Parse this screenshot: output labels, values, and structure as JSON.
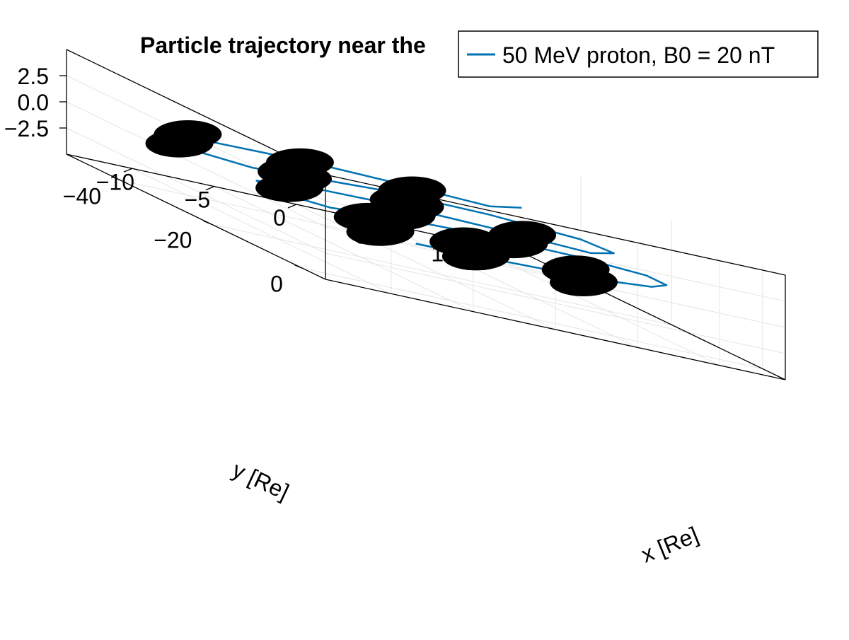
{
  "chart_data": {
    "type": "line",
    "title": "Particle trajectory near the",
    "xlabel": "x [Re]",
    "ylabel": "y [Re]",
    "zlabel": "",
    "legend": {
      "placement": "top-right",
      "entries": [
        "50 MeV proton, B0 = 20 nT"
      ]
    },
    "axes": {
      "x_ticks": [
        -10,
        -5,
        0,
        5,
        10
      ],
      "x_tick_labels": [
        "−10",
        "−5",
        "0",
        "5",
        "10"
      ],
      "y_ticks": [
        0,
        -20,
        -40
      ],
      "y_tick_labels": [
        "0",
        "−20",
        "−40"
      ],
      "z_ticks": [
        2.5,
        0.0,
        -2.5
      ],
      "z_tick_labels": [
        "2.5",
        "0.0",
        "−2.5"
      ],
      "xlim": [
        -14,
        14
      ],
      "ylim": [
        -52,
        5
      ],
      "zlim": [
        -5,
        5
      ],
      "grid": true
    },
    "series": [
      {
        "name": "50 MeV proton, B0 = 20 nT",
        "color": "#0072b2",
        "points": [
          [
            -8.5,
            5.0,
            0.3
          ],
          [
            -5.0,
            2.0,
            0.0
          ],
          [
            0.0,
            0.5,
            0.0
          ],
          [
            5.0,
            -1.5,
            0.0
          ],
          [
            8.5,
            -4.5,
            0.0
          ],
          [
            10.5,
            -8.5,
            0.0
          ],
          [
            10.5,
            -13.0,
            0.0
          ],
          [
            7.0,
            -16.0,
            0.0
          ],
          [
            1.0,
            -17.0,
            0.0
          ],
          [
            -5.0,
            -15.0,
            0.0
          ],
          [
            -9.0,
            -12.0,
            0.0
          ],
          [
            -11.5,
            -15.5,
            0.0
          ],
          [
            -11.0,
            -21.0,
            0.0
          ],
          [
            -7.0,
            -25.0,
            0.0
          ],
          [
            -1.0,
            -26.0,
            0.0
          ],
          [
            5.0,
            -24.0,
            0.0
          ],
          [
            9.5,
            -21.5,
            0.0
          ],
          [
            12.0,
            -25.5,
            0.0
          ],
          [
            11.5,
            -31.0,
            0.0
          ],
          [
            7.0,
            -35.0,
            0.0
          ],
          [
            1.0,
            -36.0,
            0.0
          ],
          [
            -5.0,
            -33.0,
            0.0
          ],
          [
            -8.5,
            -31.0,
            0.0
          ],
          [
            -11.5,
            -35.5,
            0.0
          ],
          [
            -11.0,
            -41.0,
            0.0
          ],
          [
            -7.0,
            -45.0,
            0.0
          ],
          [
            -1.0,
            -46.0,
            0.0
          ],
          [
            5.0,
            -44.0,
            0.0
          ],
          [
            9.0,
            -42.0,
            0.0
          ],
          [
            11.5,
            -44.0,
            0.3
          ]
        ]
      }
    ],
    "markers": {
      "color": "#000000",
      "description": "black ellipse markers",
      "count": 18
    }
  }
}
